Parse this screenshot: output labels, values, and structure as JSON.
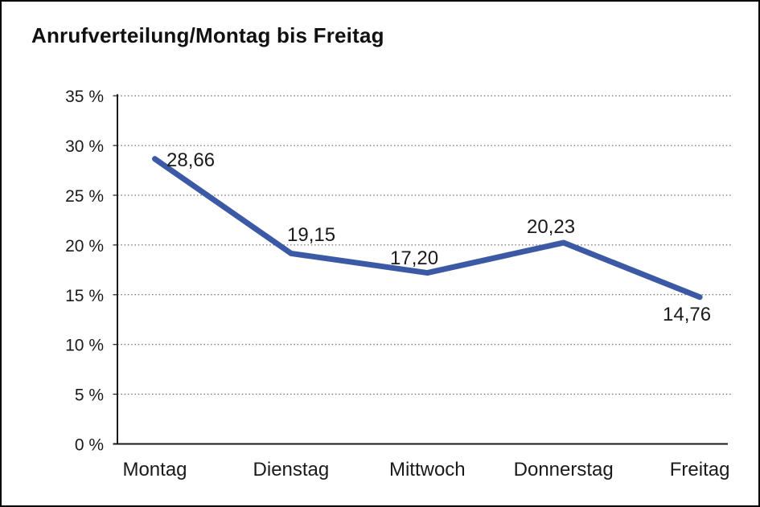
{
  "page": {
    "title": "Anrufverteilung/Montag bis Freitag"
  },
  "chart_data": {
    "type": "line",
    "title": "Anrufverteilung/Montag bis Freitag",
    "categories": [
      "Montag",
      "Dienstag",
      "Mittwoch",
      "Donnerstag",
      "Freitag"
    ],
    "values": [
      28.66,
      19.15,
      17.2,
      20.23,
      14.76
    ],
    "point_labels": [
      "28,66",
      "19,15",
      "17,20",
      "20,23",
      "14,76"
    ],
    "y_tick_labels": [
      "0 %",
      "5 %",
      "10 %",
      "15 %",
      "20 %",
      "25 %",
      "30 %",
      "35 %"
    ],
    "ylim": [
      0,
      35
    ],
    "y_step": 5,
    "xlabel": "",
    "ylabel": "",
    "grid": "horizontal-dotted",
    "legend_position": "none",
    "line_color": "#3B59A5",
    "text_color": "#1a1a1a",
    "background": "#ffffff",
    "frame_color": "#000000"
  }
}
